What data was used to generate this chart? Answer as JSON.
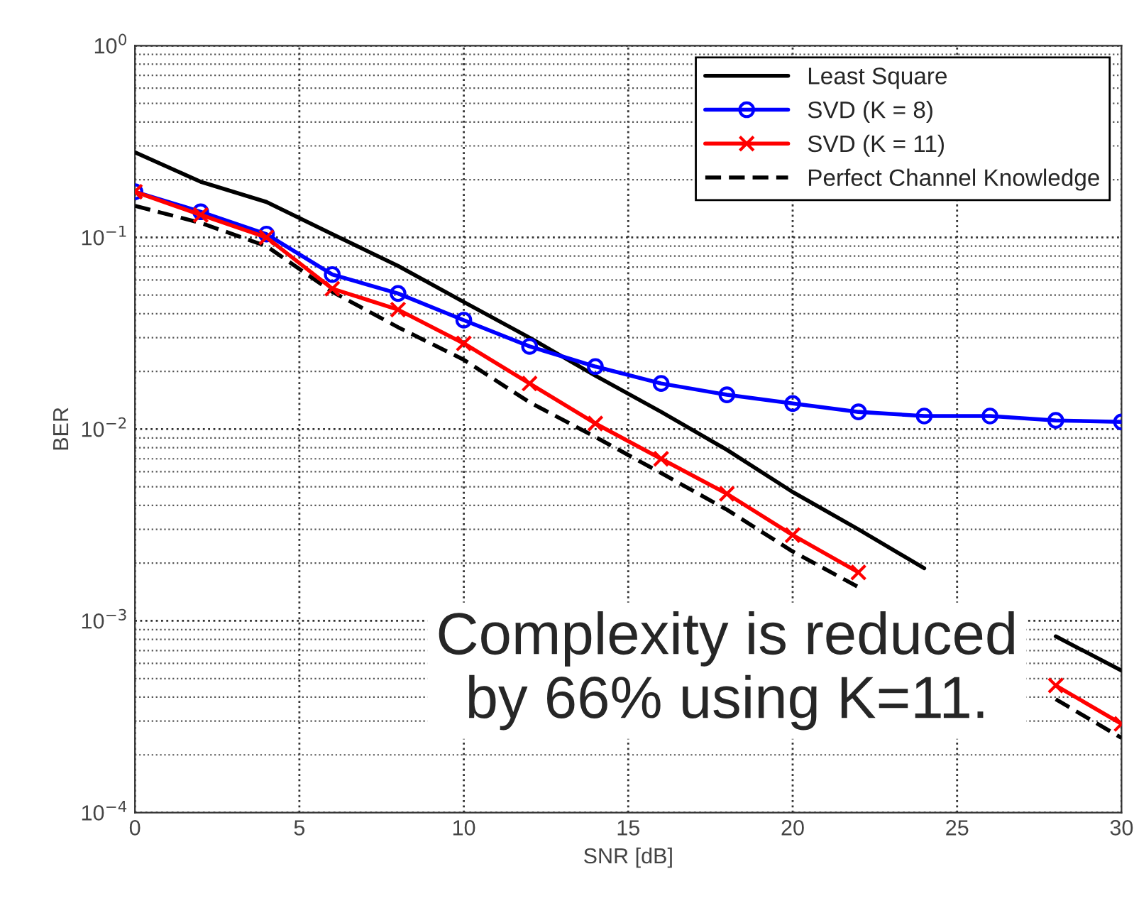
{
  "chart_data": {
    "type": "line",
    "xlabel": "SNR [dB]",
    "ylabel": "BER",
    "log": "y",
    "grid": true,
    "legend": "top right",
    "x": [
      0,
      2,
      4,
      6,
      8,
      10,
      12,
      14,
      16,
      18,
      20,
      22,
      24,
      26,
      28,
      30
    ],
    "xlim": [
      0,
      30
    ],
    "xticks": [
      0,
      5,
      10,
      15,
      20,
      25,
      30
    ],
    "ylim": [
      0.0001,
      1
    ],
    "yticks": [
      {
        "value": 0.0001,
        "label": "10$^{−4}$"
      },
      {
        "value": 0.001,
        "label": "10$^{−3}$"
      },
      {
        "value": 0.01,
        "label": "10$^{−2}$"
      },
      {
        "value": 0.1,
        "label": "10$^{−1}$"
      },
      {
        "value": 1,
        "label": "10$^{0}$"
      }
    ],
    "series": [
      {
        "name": "Least Square",
        "color": "#000000",
        "marker": "none",
        "line_style": "solid",
        "values": [
          0.278,
          0.195,
          0.153,
          0.104,
          0.071,
          0.046,
          0.03,
          0.019,
          0.0123,
          0.0078,
          0.0047,
          0.003,
          0.00188,
          null,
          0.00083,
          0.00055
        ]
      },
      {
        "name": "SVD (K = 8)",
        "color": "#0000ff",
        "marker": "circle",
        "line_style": "solid",
        "values": [
          0.173,
          0.136,
          0.104,
          0.064,
          0.051,
          0.037,
          0.027,
          0.0212,
          0.0173,
          0.0151,
          0.0136,
          0.0123,
          0.0117,
          0.0117,
          0.0111,
          0.0109
        ]
      },
      {
        "name": "SVD (K = 11)",
        "color": "#ff0000",
        "marker": "cross",
        "line_style": "solid",
        "values": [
          0.173,
          0.131,
          0.1,
          0.054,
          0.042,
          0.028,
          0.0173,
          0.0107,
          0.007,
          0.0046,
          0.0028,
          0.00179,
          null,
          null,
          0.00046,
          0.00029
        ]
      },
      {
        "name": "Perfect Channel Knowledge",
        "color": "#000000",
        "marker": "none",
        "line_style": "dashed",
        "values": [
          0.146,
          0.119,
          0.09,
          0.052,
          0.034,
          0.023,
          0.0138,
          0.0091,
          0.0059,
          0.0038,
          0.0023,
          0.0015,
          null,
          null,
          0.00039,
          0.000245
        ]
      }
    ],
    "annotations": [
      "Complexity is reduced\nby 66% using K=11."
    ]
  }
}
